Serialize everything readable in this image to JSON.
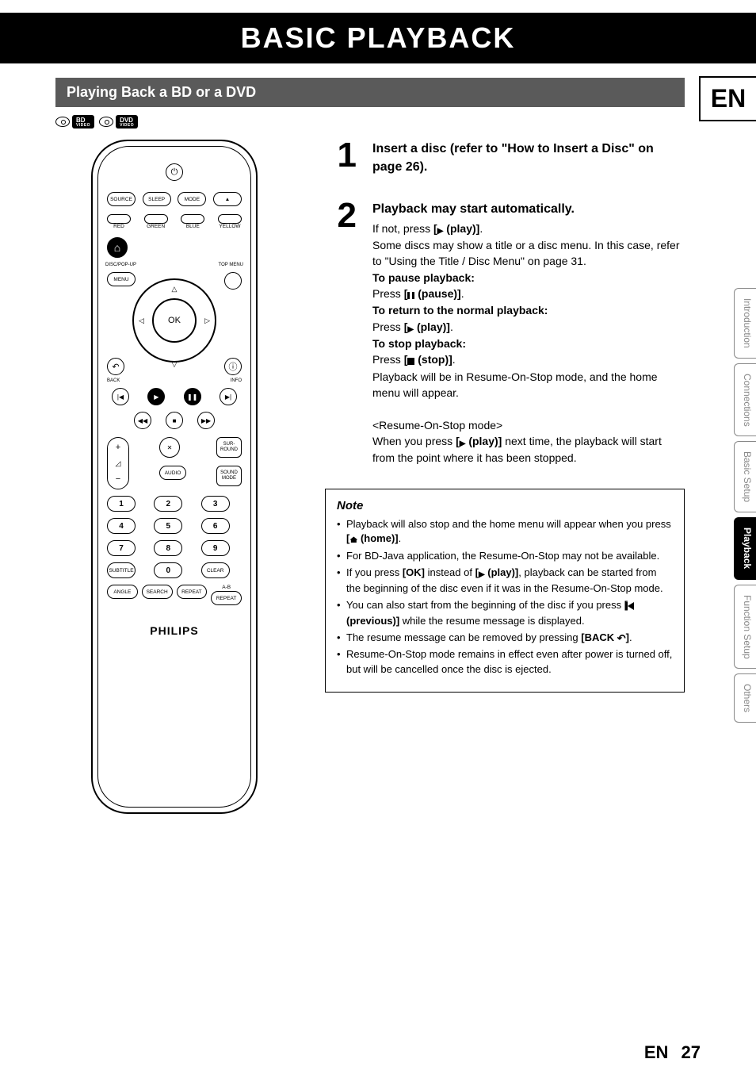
{
  "page_title": "BASIC PLAYBACK",
  "lang": "EN",
  "section_heading": "Playing Back a BD or a DVD",
  "badges": {
    "bd": {
      "top": "BD",
      "bottom": "VIDEO"
    },
    "dvd": {
      "top": "DVD",
      "bottom": "VIDEO"
    }
  },
  "side_tabs": [
    {
      "label": "Introduction",
      "active": false
    },
    {
      "label": "Connections",
      "active": false
    },
    {
      "label": "Basic Setup",
      "active": false
    },
    {
      "label": "Playback",
      "active": true
    },
    {
      "label": "Function Setup",
      "active": false
    },
    {
      "label": "Others",
      "active": false
    }
  ],
  "remote": {
    "power": "⏻",
    "row2": [
      "SOURCE",
      "SLEEP",
      "MODE",
      "▲"
    ],
    "color_row": [
      "RED",
      "GREEN",
      "BLUE",
      "YELLOW"
    ],
    "home": "⌂",
    "disc_popup": "DISC/POP-UP",
    "top_menu": "TOP MENU",
    "menu": "MENU",
    "ok": "OK",
    "back": "BACK",
    "info": "INFO",
    "back_sym": "↶",
    "info_sym": "ⓘ",
    "transport1": [
      "|◀",
      "▶",
      "❚❚",
      "▶|"
    ],
    "transport2": [
      "◀◀",
      "■",
      "▶▶"
    ],
    "vol": {
      "plus": "+",
      "icon": "◿",
      "minus": "−"
    },
    "mute": "✕",
    "audio": "AUDIO",
    "surround": "SUR-\nROUND",
    "soundmode": "SOUND\nMODE",
    "numpad": [
      "1",
      "2",
      "3",
      "4",
      "5",
      "6",
      "7",
      "8",
      "9"
    ],
    "bottom1": [
      "SUBTITLE",
      "0",
      "CLEAR"
    ],
    "bottom2_top": "A-B",
    "bottom2": [
      "ANGLE",
      "SEARCH",
      "REPEAT",
      "REPEAT"
    ],
    "brand": "PHILIPS"
  },
  "steps": {
    "s1": {
      "num": "1",
      "head": "Insert a disc (refer to \"How to Insert a Disc\" on page 26)."
    },
    "s2": {
      "num": "2",
      "head": "Playback may start automatically.",
      "if_not_a": "If not, press ",
      "if_not_b": " (play)]",
      "if_not_c": ".",
      "some": "Some discs may show a title or a disc menu. In this case, refer to \"Using the Title / Disc Menu\" on page 31.",
      "pause_h": "To pause playback:",
      "pause_a": "Press ",
      "pause_b": " (pause)]",
      "pause_c": ".",
      "return_h": "To return to the normal playback:",
      "return_a": "Press ",
      "return_b": " (play)]",
      "return_c": ".",
      "stop_h": "To stop playback:",
      "stop_a": "Press ",
      "stop_b": " (stop)]",
      "stop_c": ".",
      "after_stop": "Playback will be in Resume-On-Stop mode, and the home menu will appear.",
      "resume_h": "<Resume-On-Stop mode>",
      "resume_a": "When you press ",
      "resume_b": " (play)]",
      "resume_c": " next time, the playback will start from the point where it has been stopped."
    }
  },
  "note": {
    "title": "Note",
    "n1a": "Playback will also stop and the home menu will appear when you press ",
    "n1b": " (home)]",
    "n1c": ".",
    "n2": "For BD-Java application, the Resume-On-Stop may not be available.",
    "n3a": "If you press ",
    "n3b": "[OK]",
    "n3c": " instead of ",
    "n3d": " (play)]",
    "n3e": ", playback can be started from the beginning of the disc even if it was in the Resume-On-Stop mode.",
    "n4a": "You can also start from the beginning of the disc if you press ",
    "n4b": " (previous)]",
    "n4c": " while the resume message is displayed.",
    "n5a": "The resume message can be removed by pressing ",
    "n5b": "[BACK ",
    "n5c": "]",
    "n5d": ".",
    "n6": "Resume-On-Stop mode remains in effect even after power is turned off, but will be cancelled once the disc is ejected."
  },
  "footer": {
    "lang": "EN",
    "page": "27"
  }
}
